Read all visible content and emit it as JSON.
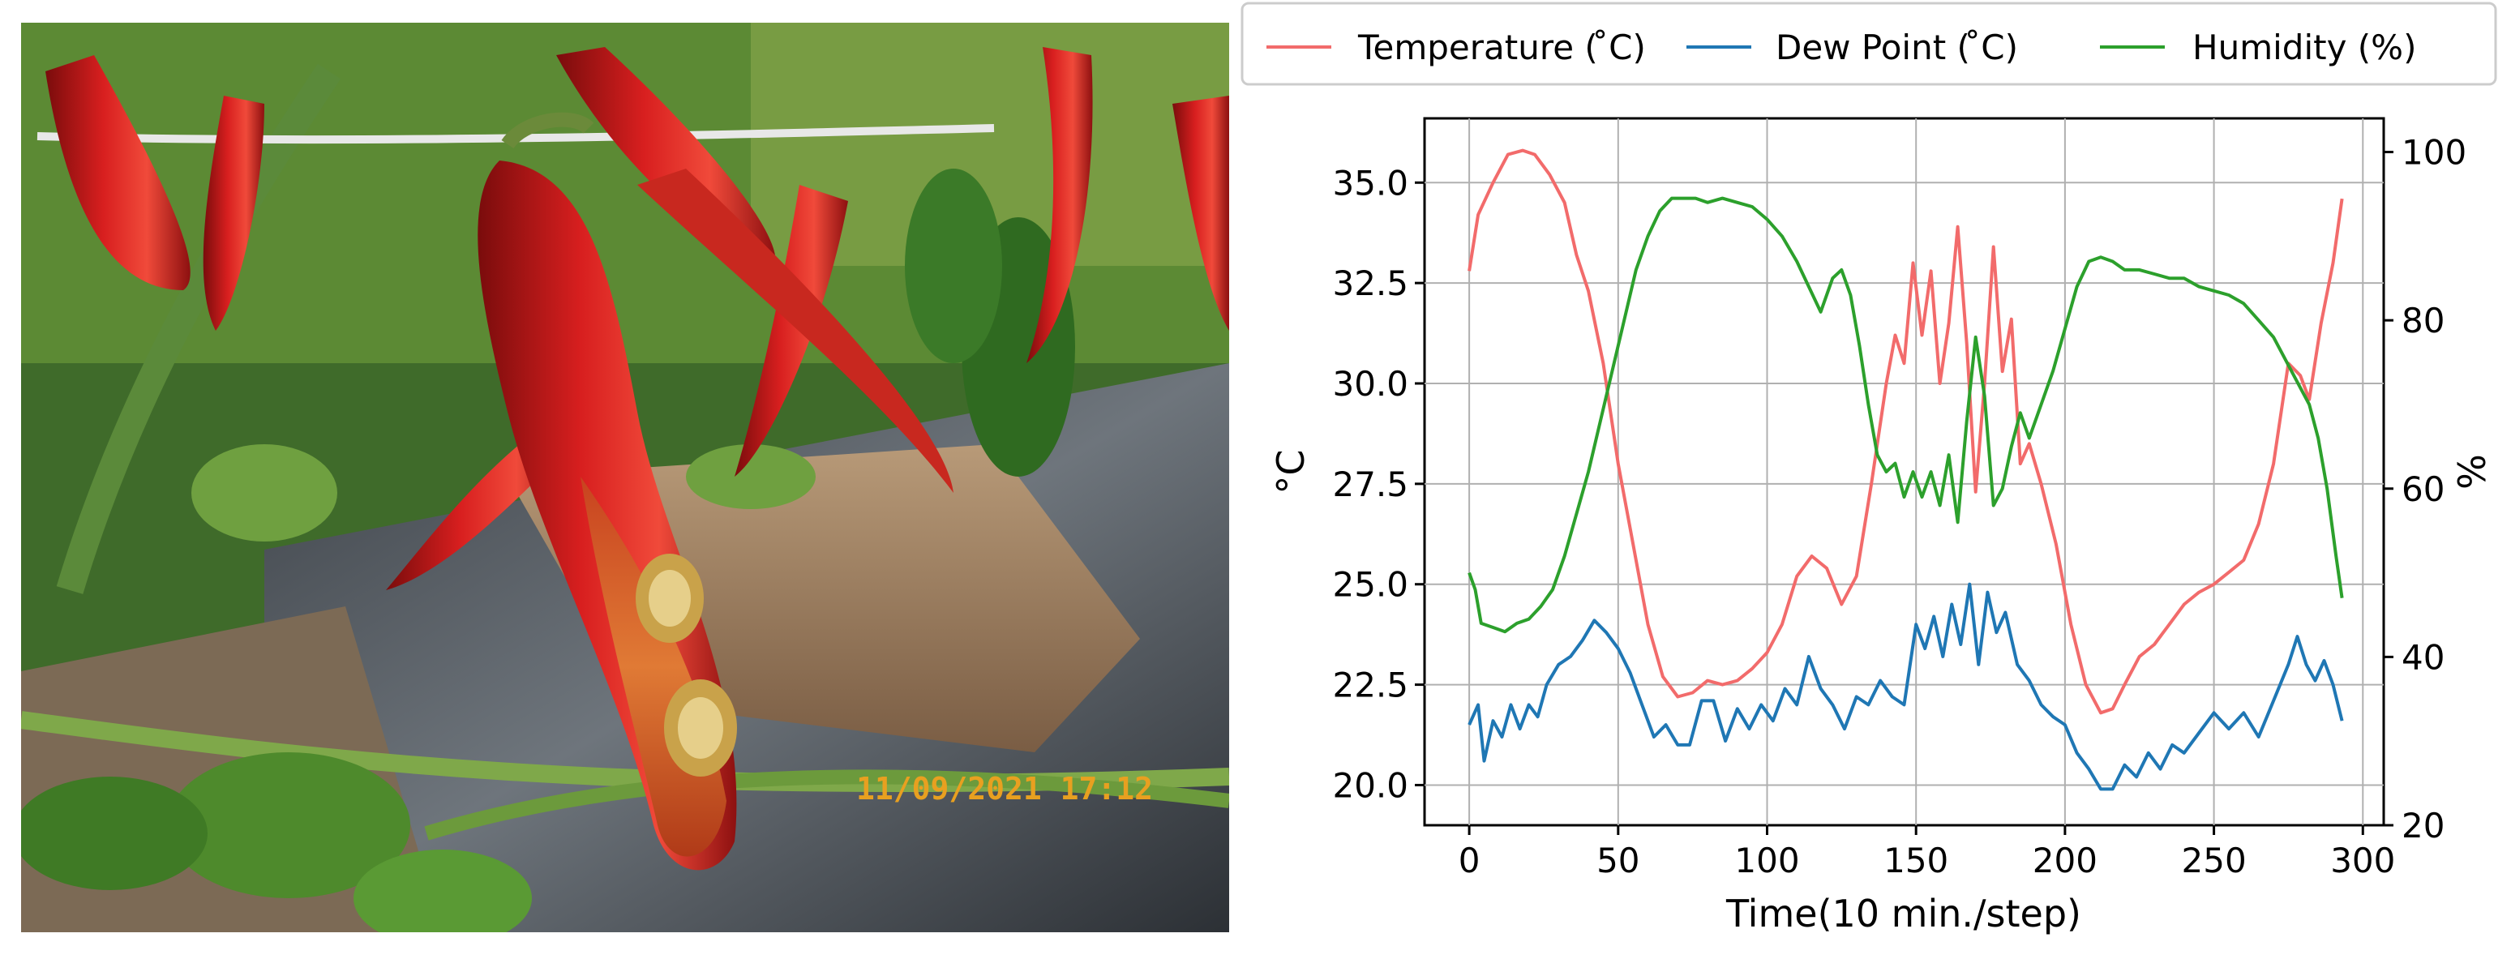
{
  "photo": {
    "timestamp": "11/09/2021  17:12"
  },
  "colors": {
    "temperature": "#f26b6b",
    "dew_point": "#1f77b4",
    "humidity": "#2ca02c",
    "grid": "#b0b0b0"
  },
  "chart_data": {
    "type": "line",
    "title": "",
    "xlabel": "Time(10 min./step)",
    "ylabel": "°C",
    "y2label": "%",
    "xlim": [
      -15,
      307
    ],
    "ylim": [
      19,
      36.6
    ],
    "y2lim": [
      20,
      104
    ],
    "xticks": [
      0,
      50,
      100,
      150,
      200,
      250,
      300
    ],
    "yticks": [
      "20.0",
      "22.5",
      "25.0",
      "27.5",
      "30.0",
      "32.5",
      "35.0"
    ],
    "y2ticks": [
      20,
      40,
      60,
      80,
      100
    ],
    "grid": true,
    "legend_position": "top",
    "series": [
      {
        "name": "Temperature ( ̊C)",
        "axis": "left",
        "points": [
          [
            0,
            32.8
          ],
          [
            3,
            34.2
          ],
          [
            8,
            35.0
          ],
          [
            13,
            35.7
          ],
          [
            18,
            35.8
          ],
          [
            22,
            35.7
          ],
          [
            27,
            35.2
          ],
          [
            32,
            34.5
          ],
          [
            36,
            33.2
          ],
          [
            40,
            32.3
          ],
          [
            45,
            30.5
          ],
          [
            50,
            28.0
          ],
          [
            55,
            26.0
          ],
          [
            60,
            24.0
          ],
          [
            65,
            22.7
          ],
          [
            70,
            22.2
          ],
          [
            75,
            22.3
          ],
          [
            80,
            22.6
          ],
          [
            85,
            22.5
          ],
          [
            90,
            22.6
          ],
          [
            95,
            22.9
          ],
          [
            100,
            23.3
          ],
          [
            105,
            24.0
          ],
          [
            110,
            25.2
          ],
          [
            115,
            25.7
          ],
          [
            120,
            25.4
          ],
          [
            125,
            24.5
          ],
          [
            130,
            25.2
          ],
          [
            135,
            27.5
          ],
          [
            140,
            30.0
          ],
          [
            143,
            31.2
          ],
          [
            146,
            30.5
          ],
          [
            149,
            33.0
          ],
          [
            152,
            31.2
          ],
          [
            155,
            32.8
          ],
          [
            158,
            30.0
          ],
          [
            161,
            31.5
          ],
          [
            164,
            33.9
          ],
          [
            167,
            31.0
          ],
          [
            170,
            27.3
          ],
          [
            173,
            30.0
          ],
          [
            176,
            33.4
          ],
          [
            179,
            30.3
          ],
          [
            182,
            31.6
          ],
          [
            185,
            28.0
          ],
          [
            188,
            28.5
          ],
          [
            192,
            27.5
          ],
          [
            197,
            26.0
          ],
          [
            202,
            24.0
          ],
          [
            207,
            22.5
          ],
          [
            212,
            21.8
          ],
          [
            216,
            21.9
          ],
          [
            220,
            22.5
          ],
          [
            225,
            23.2
          ],
          [
            230,
            23.5
          ],
          [
            235,
            24.0
          ],
          [
            240,
            24.5
          ],
          [
            245,
            24.8
          ],
          [
            250,
            25.0
          ],
          [
            255,
            25.3
          ],
          [
            260,
            25.6
          ],
          [
            265,
            26.5
          ],
          [
            270,
            28.0
          ],
          [
            275,
            30.5
          ],
          [
            279,
            30.2
          ],
          [
            282,
            29.6
          ],
          [
            286,
            31.5
          ],
          [
            290,
            33.0
          ],
          [
            293,
            34.6
          ]
        ]
      },
      {
        "name": "Dew Point ( ̊C)",
        "axis": "left",
        "points": [
          [
            0,
            21.5
          ],
          [
            3,
            22.0
          ],
          [
            5,
            20.6
          ],
          [
            8,
            21.6
          ],
          [
            11,
            21.2
          ],
          [
            14,
            22.0
          ],
          [
            17,
            21.4
          ],
          [
            20,
            22.0
          ],
          [
            23,
            21.7
          ],
          [
            26,
            22.5
          ],
          [
            30,
            23.0
          ],
          [
            34,
            23.2
          ],
          [
            38,
            23.6
          ],
          [
            42,
            24.1
          ],
          [
            46,
            23.8
          ],
          [
            50,
            23.4
          ],
          [
            54,
            22.8
          ],
          [
            58,
            22.0
          ],
          [
            62,
            21.2
          ],
          [
            66,
            21.5
          ],
          [
            70,
            21.0
          ],
          [
            74,
            21.0
          ],
          [
            78,
            22.1
          ],
          [
            82,
            22.1
          ],
          [
            86,
            21.1
          ],
          [
            90,
            21.9
          ],
          [
            94,
            21.4
          ],
          [
            98,
            22.0
          ],
          [
            102,
            21.6
          ],
          [
            106,
            22.4
          ],
          [
            110,
            22.0
          ],
          [
            114,
            23.2
          ],
          [
            118,
            22.4
          ],
          [
            122,
            22.0
          ],
          [
            126,
            21.4
          ],
          [
            130,
            22.2
          ],
          [
            134,
            22.0
          ],
          [
            138,
            22.6
          ],
          [
            142,
            22.2
          ],
          [
            146,
            22.0
          ],
          [
            150,
            24.0
          ],
          [
            153,
            23.4
          ],
          [
            156,
            24.2
          ],
          [
            159,
            23.2
          ],
          [
            162,
            24.5
          ],
          [
            165,
            23.5
          ],
          [
            168,
            25.0
          ],
          [
            171,
            23.0
          ],
          [
            174,
            24.8
          ],
          [
            177,
            23.8
          ],
          [
            180,
            24.3
          ],
          [
            184,
            23.0
          ],
          [
            188,
            22.6
          ],
          [
            192,
            22.0
          ],
          [
            196,
            21.7
          ],
          [
            200,
            21.5
          ],
          [
            204,
            20.8
          ],
          [
            208,
            20.4
          ],
          [
            212,
            19.9
          ],
          [
            216,
            19.9
          ],
          [
            220,
            20.5
          ],
          [
            224,
            20.2
          ],
          [
            228,
            20.8
          ],
          [
            232,
            20.4
          ],
          [
            236,
            21.0
          ],
          [
            240,
            20.8
          ],
          [
            245,
            21.3
          ],
          [
            250,
            21.8
          ],
          [
            255,
            21.4
          ],
          [
            260,
            21.8
          ],
          [
            265,
            21.2
          ],
          [
            270,
            22.1
          ],
          [
            275,
            23.0
          ],
          [
            278,
            23.7
          ],
          [
            281,
            23.0
          ],
          [
            284,
            22.6
          ],
          [
            287,
            23.1
          ],
          [
            290,
            22.5
          ],
          [
            293,
            21.6
          ]
        ]
      },
      {
        "name": "Humidity (%)",
        "axis": "right",
        "points": [
          [
            0,
            50
          ],
          [
            2,
            48
          ],
          [
            4,
            44
          ],
          [
            8,
            43.5
          ],
          [
            12,
            43
          ],
          [
            16,
            44
          ],
          [
            20,
            44.5
          ],
          [
            24,
            46
          ],
          [
            28,
            48
          ],
          [
            32,
            52
          ],
          [
            36,
            57
          ],
          [
            40,
            62
          ],
          [
            44,
            68
          ],
          [
            48,
            74
          ],
          [
            52,
            80
          ],
          [
            56,
            86
          ],
          [
            60,
            90
          ],
          [
            64,
            93
          ],
          [
            68,
            94.5
          ],
          [
            72,
            94.5
          ],
          [
            76,
            94.5
          ],
          [
            80,
            94
          ],
          [
            85,
            94.5
          ],
          [
            90,
            94
          ],
          [
            95,
            93.5
          ],
          [
            100,
            92
          ],
          [
            105,
            90
          ],
          [
            110,
            87
          ],
          [
            114,
            84
          ],
          [
            118,
            81
          ],
          [
            122,
            85
          ],
          [
            125,
            86
          ],
          [
            128,
            83
          ],
          [
            131,
            77
          ],
          [
            134,
            70
          ],
          [
            137,
            64
          ],
          [
            140,
            62
          ],
          [
            143,
            63
          ],
          [
            146,
            59
          ],
          [
            149,
            62
          ],
          [
            152,
            59
          ],
          [
            155,
            62
          ],
          [
            158,
            58
          ],
          [
            161,
            64
          ],
          [
            164,
            56
          ],
          [
            167,
            68
          ],
          [
            170,
            78
          ],
          [
            173,
            71
          ],
          [
            176,
            58
          ],
          [
            179,
            60
          ],
          [
            182,
            65
          ],
          [
            185,
            69
          ],
          [
            188,
            66
          ],
          [
            192,
            70
          ],
          [
            196,
            74
          ],
          [
            200,
            79
          ],
          [
            204,
            84
          ],
          [
            208,
            87
          ],
          [
            212,
            87.5
          ],
          [
            216,
            87
          ],
          [
            220,
            86
          ],
          [
            225,
            86
          ],
          [
            230,
            85.5
          ],
          [
            235,
            85
          ],
          [
            240,
            85
          ],
          [
            245,
            84
          ],
          [
            250,
            83.5
          ],
          [
            255,
            83
          ],
          [
            260,
            82
          ],
          [
            265,
            80
          ],
          [
            270,
            78
          ],
          [
            273,
            76
          ],
          [
            276,
            74
          ],
          [
            279,
            72
          ],
          [
            282,
            70
          ],
          [
            285,
            66
          ],
          [
            288,
            60
          ],
          [
            291,
            52
          ],
          [
            293,
            47
          ]
        ]
      }
    ]
  }
}
